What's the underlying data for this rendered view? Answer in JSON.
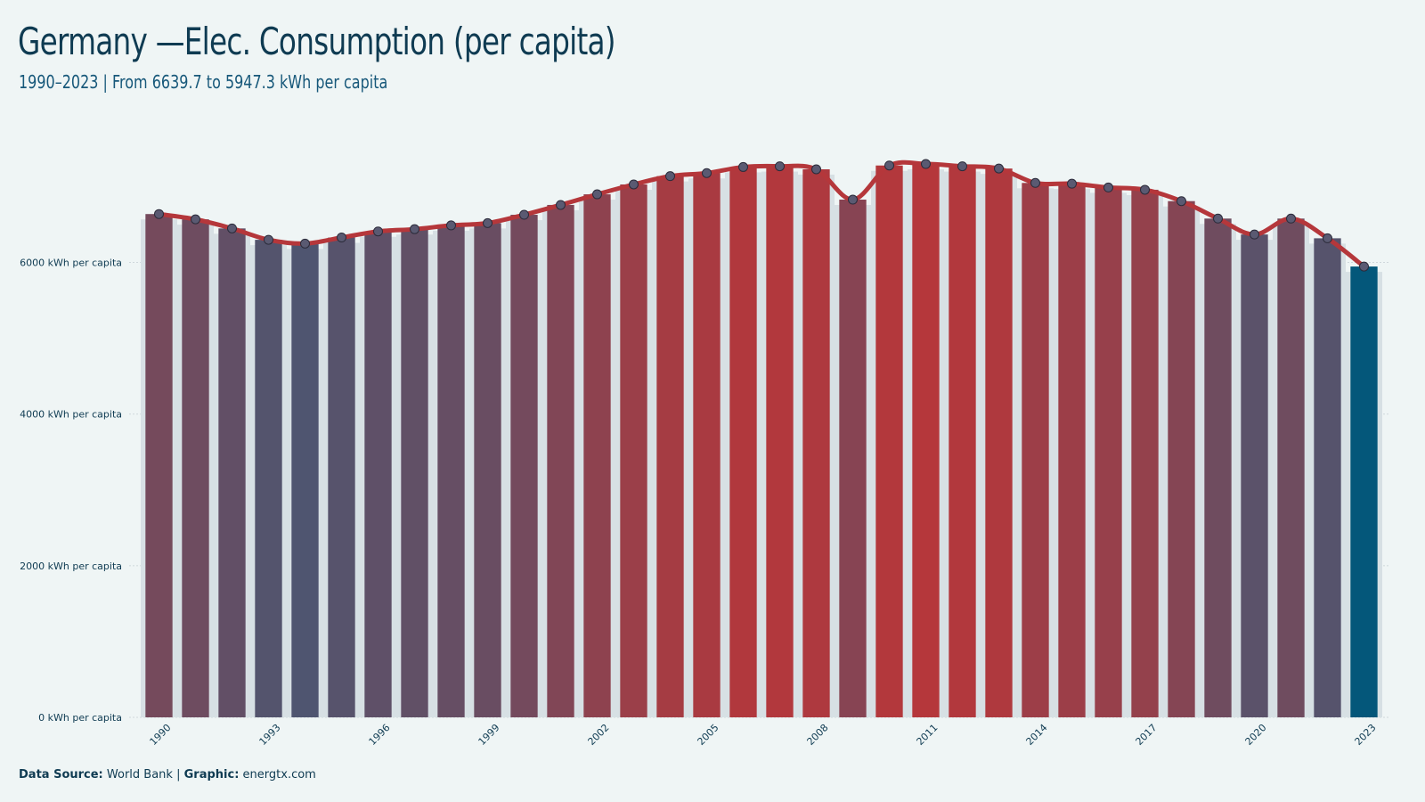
{
  "header": {
    "title": "Germany —Elec. Consumption (per capita)",
    "subtitle": "1990–2023 | From 6639.7  to 5947.3  kWh per capita"
  },
  "footer": {
    "source_label": "Data  Source:",
    "source_value": "World Bank",
    "separator": "|",
    "graphic_label": "Graphic:",
    "graphic_value": "energtx.com"
  },
  "colors": {
    "background": "#eff5f5",
    "line": "#b5373b",
    "high_bar": "#b5373b",
    "low_bar": "#4f5570",
    "highlight_bar": "#04577a",
    "bar_backdrop": "#d7e0e4",
    "marker": "#5a5a72"
  },
  "chart_data": {
    "type": "bar",
    "title": "Germany —Elec. Consumption (per capita)",
    "subtitle": "1990–2023 | From 6639.7  to 5947.3  kWh per capita",
    "xlabel": "",
    "ylabel": "",
    "ylim": [
      0,
      7700
    ],
    "y_ticks": [
      0,
      2000,
      4000,
      6000
    ],
    "y_tick_suffix": " kWh per capita",
    "x_tick_labels": [
      "1990",
      "1993",
      "1996",
      "1999",
      "2002",
      "2005",
      "2008",
      "2011",
      "2014",
      "2017",
      "2020",
      "2023"
    ],
    "grid": true,
    "legend": "none",
    "overlay": "line with markers",
    "highlight_last": true,
    "categories": [
      "1990",
      "1991",
      "1992",
      "1993",
      "1994",
      "1995",
      "1996",
      "1997",
      "1998",
      "1999",
      "2000",
      "2001",
      "2002",
      "2003",
      "2004",
      "2005",
      "2006",
      "2007",
      "2008",
      "2009",
      "2010",
      "2011",
      "2012",
      "2013",
      "2014",
      "2015",
      "2016",
      "2017",
      "2018",
      "2019",
      "2020",
      "2021",
      "2022",
      "2023"
    ],
    "values": [
      6639.7,
      6570,
      6450,
      6300,
      6250,
      6330,
      6410,
      6440,
      6490,
      6520,
      6630,
      6760,
      6900,
      7030,
      7140,
      7180,
      7260,
      7270,
      7230,
      6830,
      7280,
      7300,
      7270,
      7240,
      7050,
      7040,
      6990,
      6960,
      6810,
      6580,
      6370,
      6580,
      6320,
      5947.3
    ]
  }
}
